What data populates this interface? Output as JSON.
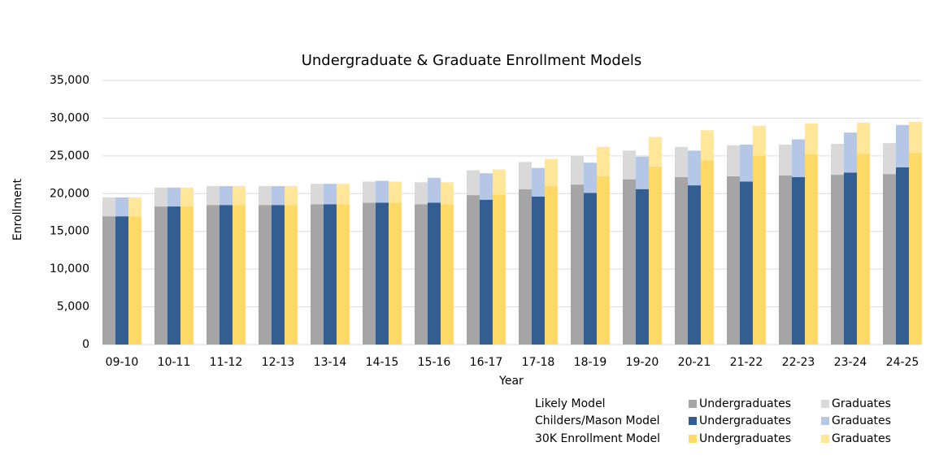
{
  "chart_data": {
    "type": "grouped-stacked-bar",
    "title": "Undergraduate & Graduate Enrollment Models",
    "x_label": "Year",
    "y_label": "Enrollment",
    "categories": [
      "09-10",
      "10-11",
      "11-12",
      "12-13",
      "13-14",
      "14-15",
      "15-16",
      "16-17",
      "17-18",
      "18-19",
      "19-20",
      "20-21",
      "21-22",
      "22-23",
      "23-24",
      "24-25"
    ],
    "ylim": [
      0,
      35000
    ],
    "yticks": [
      0,
      {
        "value": 5000,
        "label": "5,000"
      },
      {
        "value": 10000,
        "label": "10,000"
      },
      {
        "value": 15000,
        "label": "15,000"
      },
      {
        "value": 20000,
        "label": "20,000"
      },
      {
        "value": 25000,
        "label": "25,000"
      },
      {
        "value": 30000,
        "label": "30,000"
      },
      {
        "value": 35000,
        "label": "35,000"
      }
    ],
    "grid": true,
    "groups": [
      {
        "name": "Likely Model",
        "series": [
          {
            "name": "Undergraduates",
            "color": "#a5a5a5",
            "values": [
              17000,
              18300,
              18500,
              18500,
              18600,
              18800,
              18600,
              19800,
              20600,
              21200,
              21900,
              22200,
              22300,
              22400,
              22500,
              22600
            ]
          },
          {
            "name": "Graduates",
            "color": "#d9d9d9",
            "values": [
              2500,
              2500,
              2500,
              2500,
              2700,
              2800,
              2900,
              3300,
              3600,
              3800,
              3800,
              4000,
              4100,
              4100,
              4100,
              4100
            ]
          }
        ]
      },
      {
        "name": "Childers/Mason Model",
        "series": [
          {
            "name": "Undergraduates",
            "color": "#335e94",
            "values": [
              17000,
              18300,
              18500,
              18500,
              18600,
              18800,
              18800,
              19200,
              19600,
              20100,
              20600,
              21100,
              21600,
              22200,
              22800,
              23500
            ]
          },
          {
            "name": "Graduates",
            "color": "#b4c7e7",
            "values": [
              2500,
              2500,
              2500,
              2500,
              2700,
              2900,
              3300,
              3500,
              3800,
              4000,
              4300,
              4600,
              4900,
              5000,
              5300,
              5600
            ]
          }
        ]
      },
      {
        "name": "30K Enrollment Model",
        "series": [
          {
            "name": "Undergraduates",
            "color": "#ffd966",
            "values": [
              17000,
              18300,
              18500,
              18500,
              18600,
              18800,
              18600,
              19900,
              21000,
              22300,
              23600,
              24400,
              25000,
              25200,
              25300,
              25400
            ]
          },
          {
            "name": "Graduates",
            "color": "#ffe699",
            "values": [
              2500,
              2500,
              2500,
              2500,
              2700,
              2800,
              2900,
              3300,
              3600,
              3900,
              3900,
              4000,
              4000,
              4100,
              4100,
              4100
            ]
          }
        ]
      }
    ]
  }
}
